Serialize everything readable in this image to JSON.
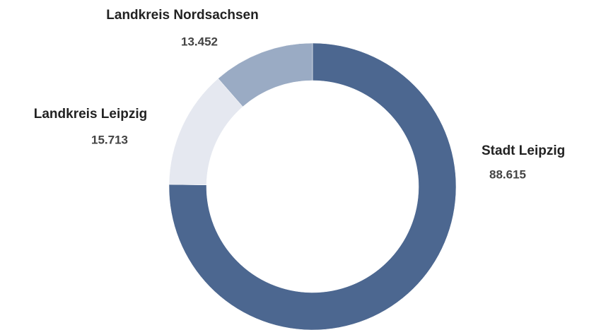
{
  "chart_data": {
    "type": "donut",
    "categories": [
      "Stadt Leipzig",
      "Landkreis Leipzig",
      "Landkreis Nordsachsen"
    ],
    "values": [
      88615,
      15713,
      13452
    ],
    "value_labels": [
      "88.615",
      "15.713",
      "13.452"
    ],
    "colors": [
      "#4c6790",
      "#e5e8f0",
      "#9aabc4"
    ]
  }
}
